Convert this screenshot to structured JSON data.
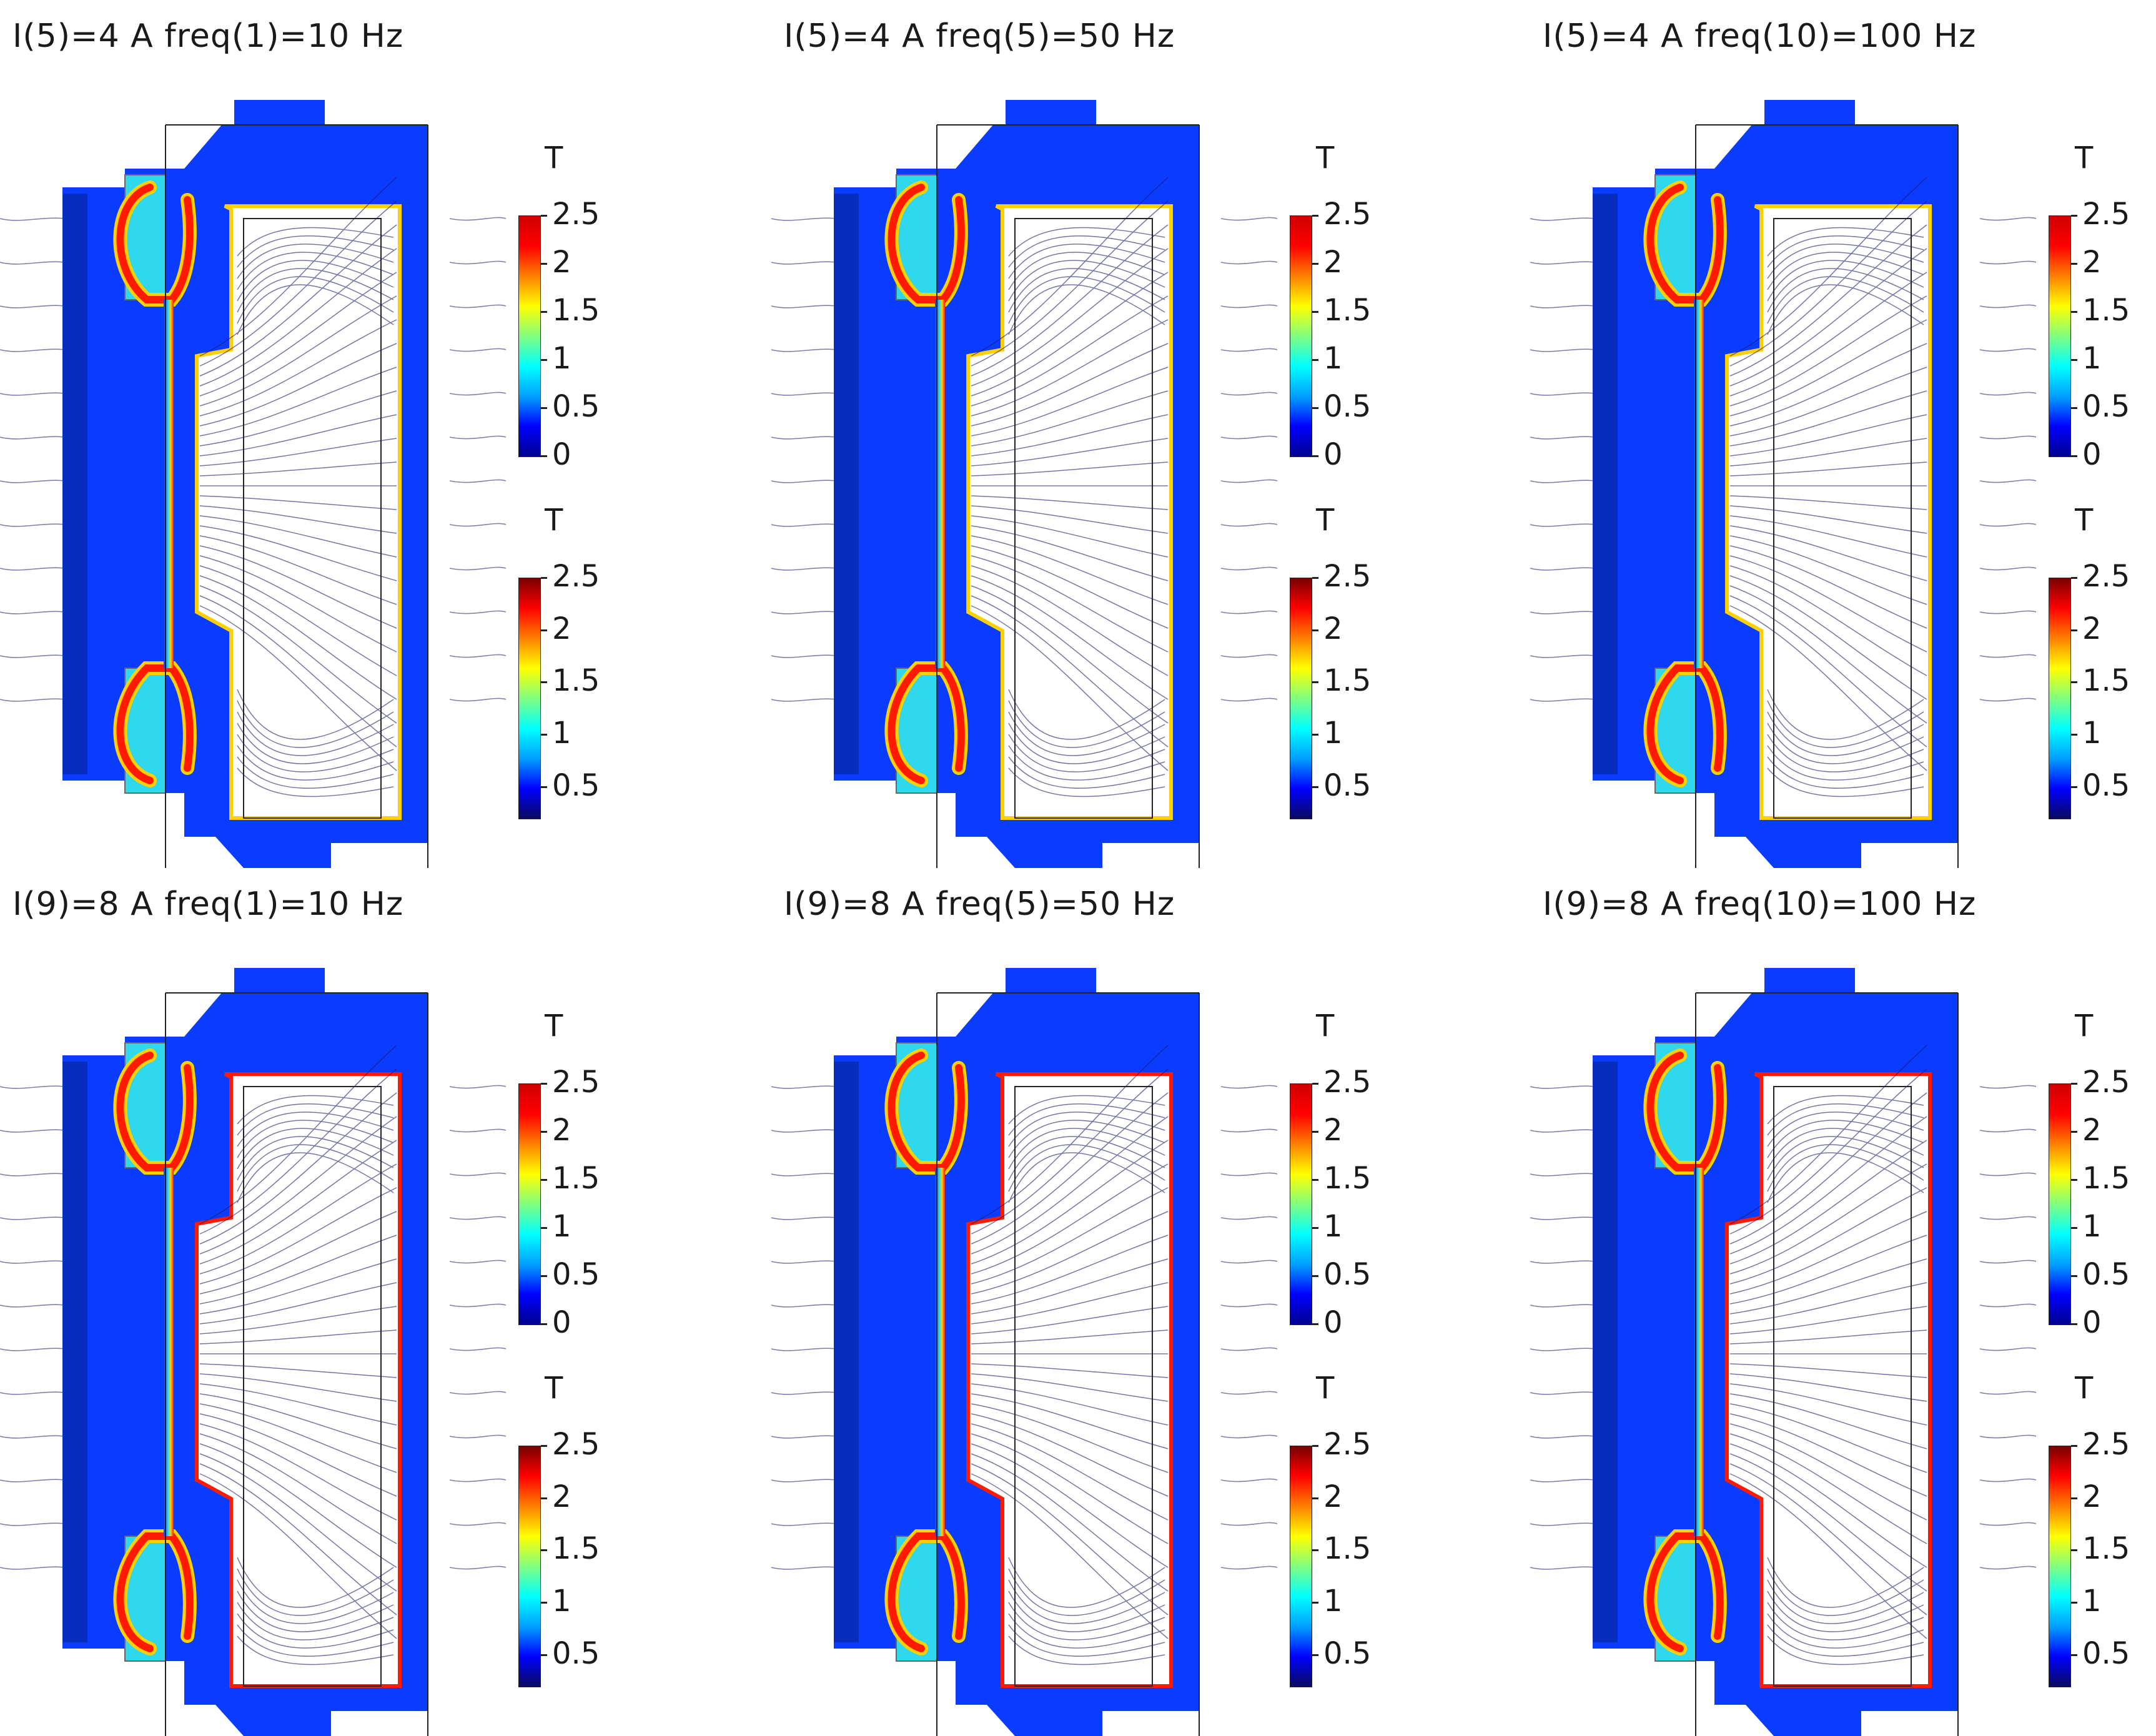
{
  "panels": [
    {
      "title": "I(5)=4 A freq(1)=10 Hz",
      "variant": 1
    },
    {
      "title": "I(5)=4 A freq(5)=50 Hz",
      "variant": 2
    },
    {
      "title": "I(5)=4 A freq(10)=100 Hz",
      "variant": 3
    },
    {
      "title": "I(9)=8 A freq(1)=10 Hz",
      "variant": 4
    },
    {
      "title": "I(9)=8 A freq(5)=50 Hz",
      "variant": 5
    },
    {
      "title": "I(9)=8 A freq(10)=100 Hz",
      "variant": 6
    }
  ],
  "colorbars": {
    "unit": "T",
    "upper": {
      "ticks": [
        "2.5",
        "2",
        "1.5",
        "1",
        "0.5",
        "0"
      ],
      "min": 0,
      "max": 2.5,
      "colors": [
        "#00008f",
        "#0000ff",
        "#00a0ff",
        "#00ffff",
        "#80ff80",
        "#ffff00",
        "#ff8000",
        "#ff0000",
        "#d00000"
      ]
    },
    "lower": {
      "ticks": [
        "2.5",
        "2",
        "1.5",
        "1",
        "0.5"
      ],
      "min": 0.2,
      "max": 2.5,
      "colors": [
        "#0a0a60",
        "#0000ff",
        "#00a0ff",
        "#00ffff",
        "#80ff80",
        "#ffff00",
        "#ff8000",
        "#ff0000",
        "#7a0000"
      ]
    }
  },
  "colors": {
    "core": "#0a3cff",
    "hot": "#ff1a00",
    "warm": "#ffd000",
    "cyan": "#30d8ee",
    "line": "#1a1a6a"
  }
}
